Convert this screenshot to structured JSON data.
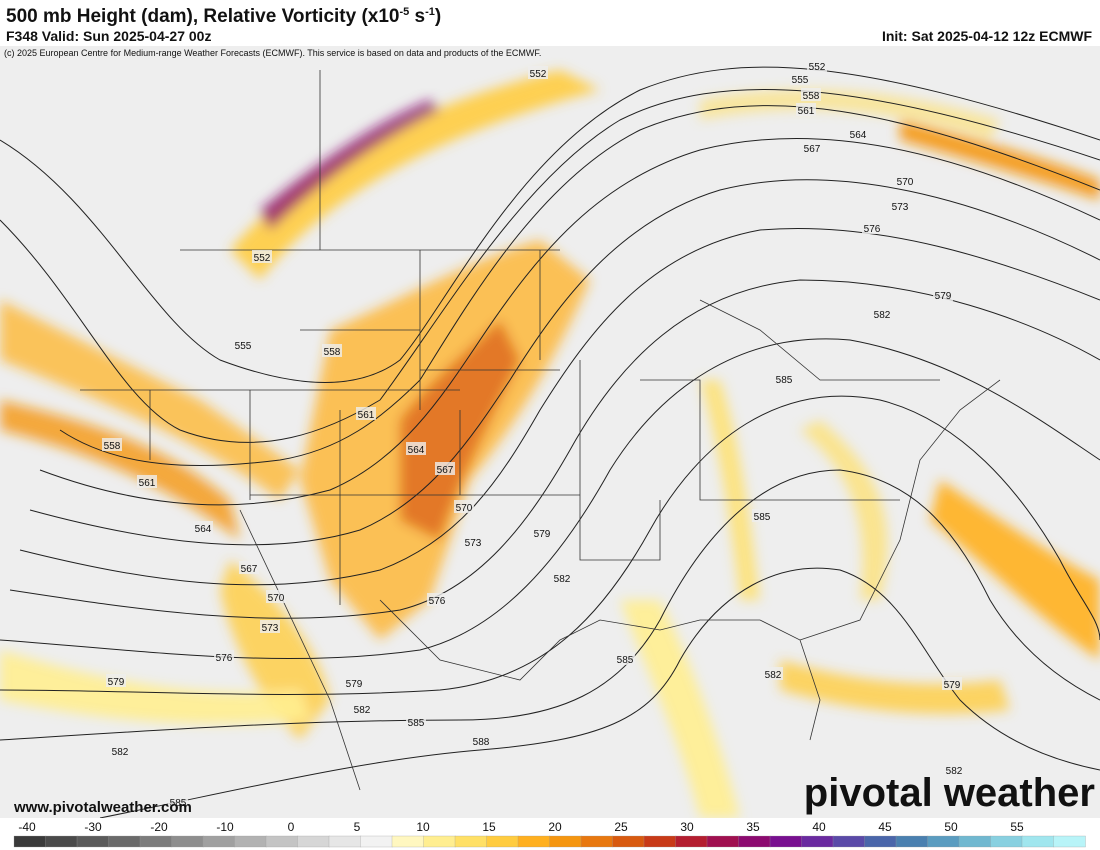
{
  "header": {
    "title": {
      "text": "500 mb Height (dam), Relative Vorticity (x10",
      "exp1": "-5",
      "unit": " s",
      "exp2": "-1",
      "close": ")"
    },
    "valid": "F348 Valid: Sun 2025-04-27 00z",
    "init": "Init: Sat 2025-04-12 12z ECMWF",
    "copyright": "(c) 2025 European Centre for Medium-range Weather Forecasts (ECMWF). This service is based on data and products of the ECMWF."
  },
  "contour_labels": [
    "552",
    "552",
    "555",
    "558",
    "561",
    "564",
    "567",
    "570",
    "573",
    "576",
    "579",
    "582",
    "585",
    "585",
    "585",
    "582",
    "579",
    "576",
    "573",
    "570",
    "567",
    "564",
    "561",
    "558",
    "555",
    "552",
    "558",
    "561",
    "564",
    "567",
    "570",
    "573",
    "576",
    "579",
    "582",
    "585",
    "579",
    "582",
    "585",
    "588",
    "582",
    "579",
    "582"
  ],
  "website": "www.pivotalweather.com",
  "logo": "pivotal weather",
  "colorbar": {
    "ticks": [
      -40,
      -30,
      -20,
      -10,
      0,
      5,
      10,
      15,
      20,
      25,
      30,
      35,
      40,
      45,
      50,
      55
    ],
    "colors": [
      "#3a3a3a",
      "#4a4a4a",
      "#5a5a5a",
      "#6a6a6a",
      "#7c7c7c",
      "#8e8e8e",
      "#a0a0a0",
      "#b2b2b2",
      "#c4c4c4",
      "#d6d6d6",
      "#e6e6e6",
      "#f2f2f2",
      "#fff7c0",
      "#ffee90",
      "#ffe066",
      "#ffcc40",
      "#ffb020",
      "#f59610",
      "#e87810",
      "#d85a10",
      "#c83a18",
      "#b41e30",
      "#a01050",
      "#8c0a70",
      "#781090",
      "#6a2aa0",
      "#5a4aa8",
      "#4a66aa",
      "#4a80b0",
      "#5a9cc0",
      "#70b8d0",
      "#88d0e0",
      "#a0e6ee",
      "#b8f4f8"
    ]
  }
}
